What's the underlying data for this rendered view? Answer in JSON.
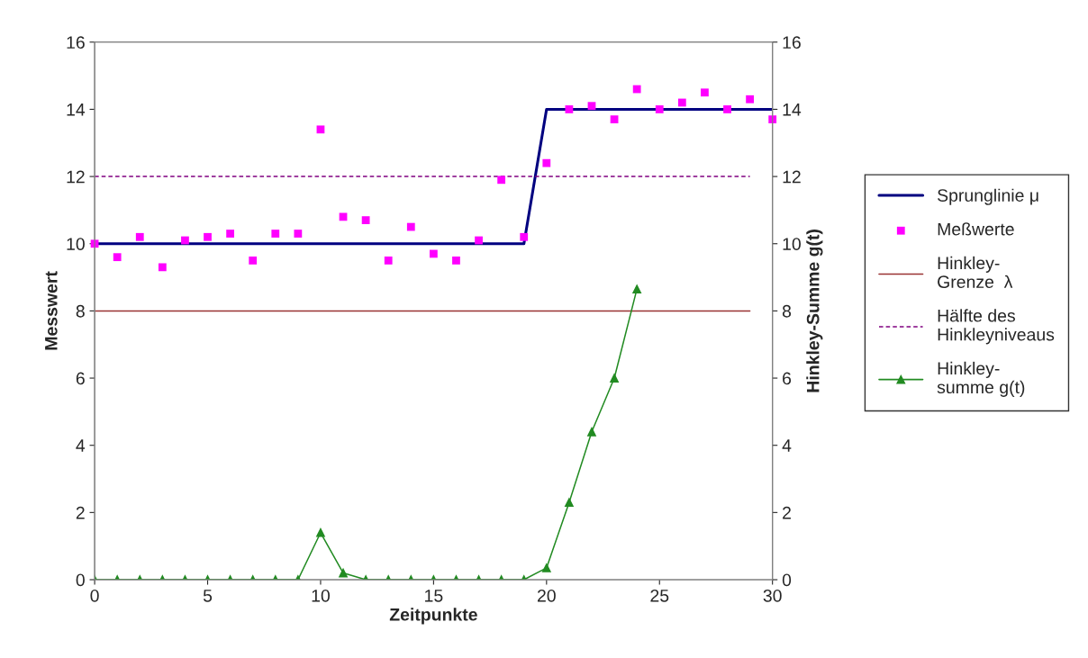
{
  "chart_data": {
    "type": "line",
    "xlabel": "Zeitpunkte",
    "ylabel": "Messwert",
    "y2label": "Hinkley-Summe g(t)",
    "xlim": [
      0,
      30
    ],
    "xticks": [
      0,
      5,
      10,
      15,
      20,
      25,
      30
    ],
    "ylim": [
      0,
      16
    ],
    "yticks": [
      0,
      2,
      4,
      6,
      8,
      10,
      12,
      14,
      16
    ],
    "y2lim": [
      0,
      16
    ],
    "y2ticks": [
      0,
      2,
      4,
      6,
      8,
      10,
      12,
      14,
      16
    ],
    "grid": false,
    "legend": "right",
    "series": [
      {
        "name": "Sprunglinie μ",
        "color": "#000080",
        "x": [
          0,
          19,
          20,
          30
        ],
        "values": [
          10,
          10,
          14,
          14
        ],
        "marker": "none",
        "line_style": "solid"
      },
      {
        "name": "Meßwerte",
        "type": "scatter",
        "color": "#ff00ff",
        "x": [
          0,
          1,
          2,
          3,
          4,
          5,
          6,
          7,
          8,
          9,
          10,
          11,
          12,
          13,
          14,
          15,
          16,
          17,
          18,
          19,
          20,
          21,
          22,
          23,
          24,
          25,
          26,
          27,
          28,
          29,
          30
        ],
        "values": [
          10.0,
          9.6,
          10.2,
          9.3,
          10.1,
          10.2,
          10.3,
          9.5,
          10.3,
          10.3,
          13.4,
          10.8,
          10.7,
          9.5,
          10.5,
          9.7,
          9.5,
          10.1,
          11.9,
          10.2,
          12.4,
          14.0,
          14.1,
          13.7,
          14.6,
          14.0,
          14.2,
          14.5,
          14.0,
          14.3,
          13.7
        ],
        "marker": "square"
      },
      {
        "name": "Hinkley-\nGrenze  λ",
        "color": "#993333",
        "x": [
          0,
          29
        ],
        "values": [
          8,
          8
        ],
        "marker": "none",
        "line_style": "solid"
      },
      {
        "name": "Hälfte des\nHinkleyniveaus",
        "color": "#800080",
        "x": [
          0,
          29
        ],
        "values": [
          12,
          12
        ],
        "marker": "none",
        "line_style": "dashed"
      },
      {
        "name": "Hinkley-\nsumme g(t)",
        "axis": "y2",
        "color": "#228B22",
        "x": [
          0,
          1,
          2,
          3,
          4,
          5,
          6,
          7,
          8,
          9,
          10,
          11,
          12,
          13,
          14,
          15,
          16,
          17,
          18,
          19,
          20,
          21,
          22,
          23,
          24
        ],
        "values": [
          0,
          0,
          0,
          0,
          0,
          0,
          0,
          0,
          0,
          0,
          1.4,
          0.2,
          0,
          0,
          0,
          0,
          0,
          0,
          0,
          0,
          0.35,
          2.3,
          4.4,
          6.0,
          8.65
        ],
        "marker": "triangle",
        "line_style": "solid"
      }
    ]
  }
}
